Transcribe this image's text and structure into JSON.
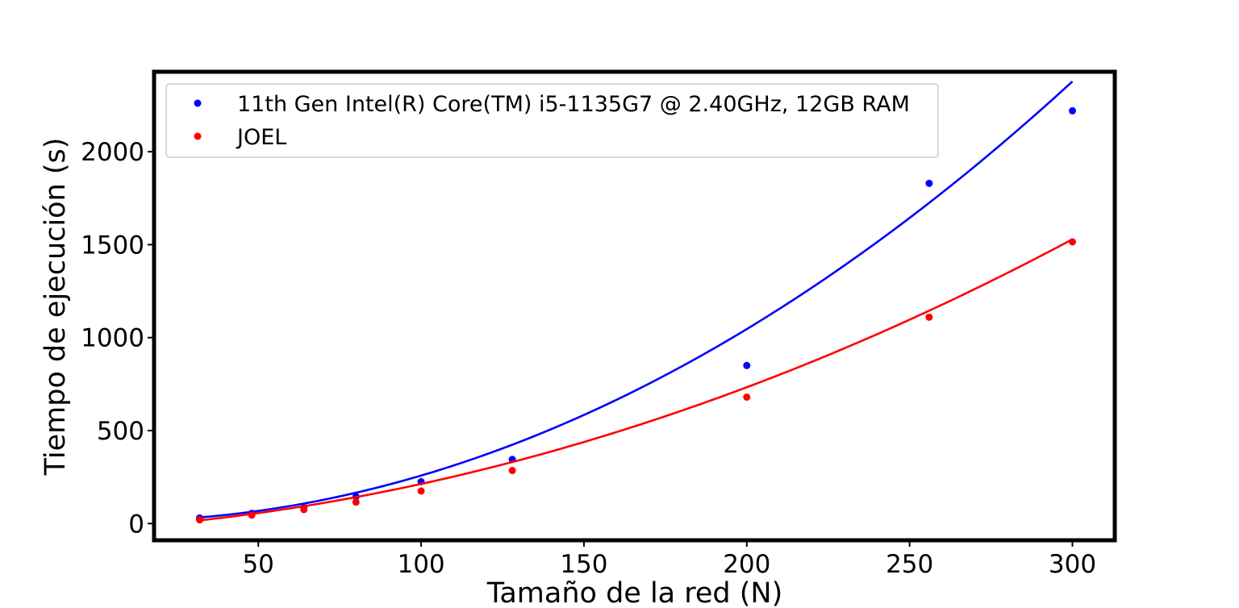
{
  "chart_data": {
    "type": "scatter",
    "title": "",
    "xlabel": "Tamaño de la red (N)",
    "ylabel": "Tiempo de ejecución (s)",
    "xlim": [
      18,
      313
    ],
    "ylim": [
      -90,
      2430
    ],
    "xticks": [
      50,
      100,
      150,
      200,
      250,
      300
    ],
    "yticks": [
      0,
      500,
      1000,
      1500,
      2000
    ],
    "grid": false,
    "legend_position": "top-left",
    "series": [
      {
        "name": "11th Gen Intel(R) Core(TM) i5-1135G7 @ 2.40GHz, 12GB RAM",
        "color": "#0000ff",
        "x": [
          32,
          48,
          64,
          80,
          100,
          128,
          200,
          256,
          300
        ],
        "y": [
          30,
          55,
          85,
          145,
          225,
          345,
          850,
          1830,
          2220
        ],
        "fit": {
          "x_range": [
            32,
            300
          ],
          "coefficients_quadratic": [
            0.0272,
            -0.28,
            14
          ]
        }
      },
      {
        "name": "JOEL",
        "color": "#ff0000",
        "x": [
          32,
          48,
          64,
          80,
          100,
          128,
          200,
          256,
          300
        ],
        "y": [
          20,
          45,
          75,
          115,
          175,
          285,
          680,
          1110,
          1515
        ],
        "fit": {
          "x_range": [
            32,
            300
          ],
          "coefficients_quadratic": [
            0.0138,
            1.06,
            -31
          ]
        }
      }
    ]
  }
}
